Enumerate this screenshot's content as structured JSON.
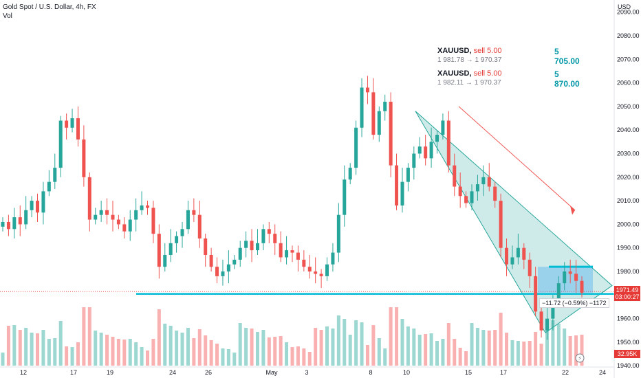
{
  "header": {
    "title": "Gold Spot / U.S. Dollar, 4h, FX",
    "volume_label": "Vol"
  },
  "axis": {
    "currency": "USD",
    "price_ticks": [
      "2090.00",
      "2080.00",
      "2070.00",
      "2060.00",
      "2050.00",
      "2040.00",
      "2030.00",
      "2020.00",
      "2010.00",
      "2000.00",
      "1990.00",
      "1980.00",
      "1970.00",
      "1960.00",
      "1950.00",
      "1940.00"
    ],
    "time_ticks": [
      "12",
      "17",
      "19",
      "24",
      "26",
      "May",
      "3",
      "8",
      "10",
      "15",
      "17",
      "22",
      "24"
    ]
  },
  "trades": [
    {
      "symbol": "XAUUSD,",
      "side": "sell 5.00",
      "prices": "1 981.78 → 1 970.37",
      "pl": "5 705.00"
    },
    {
      "symbol": "XAUUSD,",
      "side": "sell 5.00",
      "prices": "1 982.11 → 1 970.37",
      "pl": "5 870.00"
    }
  ],
  "last_price": {
    "price": "1971.49",
    "countdown": "03:00:27"
  },
  "volume_value": "32.95K",
  "position_label": "−11.72 (−0.59%) −1172",
  "colors": {
    "up": "#26a69a",
    "down": "#ef5350",
    "support": "#00bcd4",
    "channel": "#26a69a",
    "position": "#2196f3"
  },
  "chart_data": {
    "type": "candlestick",
    "title": "Gold Spot / U.S. Dollar, 4h, FX",
    "ylabel": "USD",
    "ylim": [
      1940,
      2095
    ],
    "x_ticks": [
      "12",
      "17",
      "19",
      "24",
      "26",
      "May",
      "3",
      "8",
      "10",
      "15",
      "17",
      "22",
      "24"
    ],
    "close_series": [
      2001,
      1998,
      2003,
      2000,
      2006,
      2010,
      2005,
      2014,
      2018,
      2024,
      2044,
      2041,
      2045,
      2036,
      2020,
      2002,
      2004,
      2006,
      2004,
      2002,
      2000,
      1997,
      2002,
      2006,
      2008,
      2007,
      1996,
      1982,
      1987,
      1992,
      1995,
      1998,
      2006,
      2004,
      1994,
      1987,
      1982,
      1978,
      1980,
      1983,
      1985,
      1990,
      1993,
      1989,
      1992,
      1998,
      1996,
      1992,
      1986,
      1989,
      1988,
      1985,
      1982,
      1980,
      1979,
      1978,
      1983,
      1988,
      2004,
      2019,
      2024,
      2041,
      2058,
      2056,
      2038,
      2048,
      2052,
      2025,
      2008,
      2018,
      2024,
      2030,
      2033,
      2028,
      2035,
      2038,
      2044,
      2025,
      2016,
      2012,
      2009,
      2014,
      2017,
      2020,
      2016,
      2010,
      1990,
      1983,
      1986,
      1990,
      1985,
      1978,
      1963,
      1955,
      1960,
      1968,
      1975,
      1980,
      1979,
      1976,
      1971
    ],
    "volume_ticks_note": "volume bars shown in lower pane",
    "support_level": 1970.5,
    "current_price": 1971.49
  }
}
